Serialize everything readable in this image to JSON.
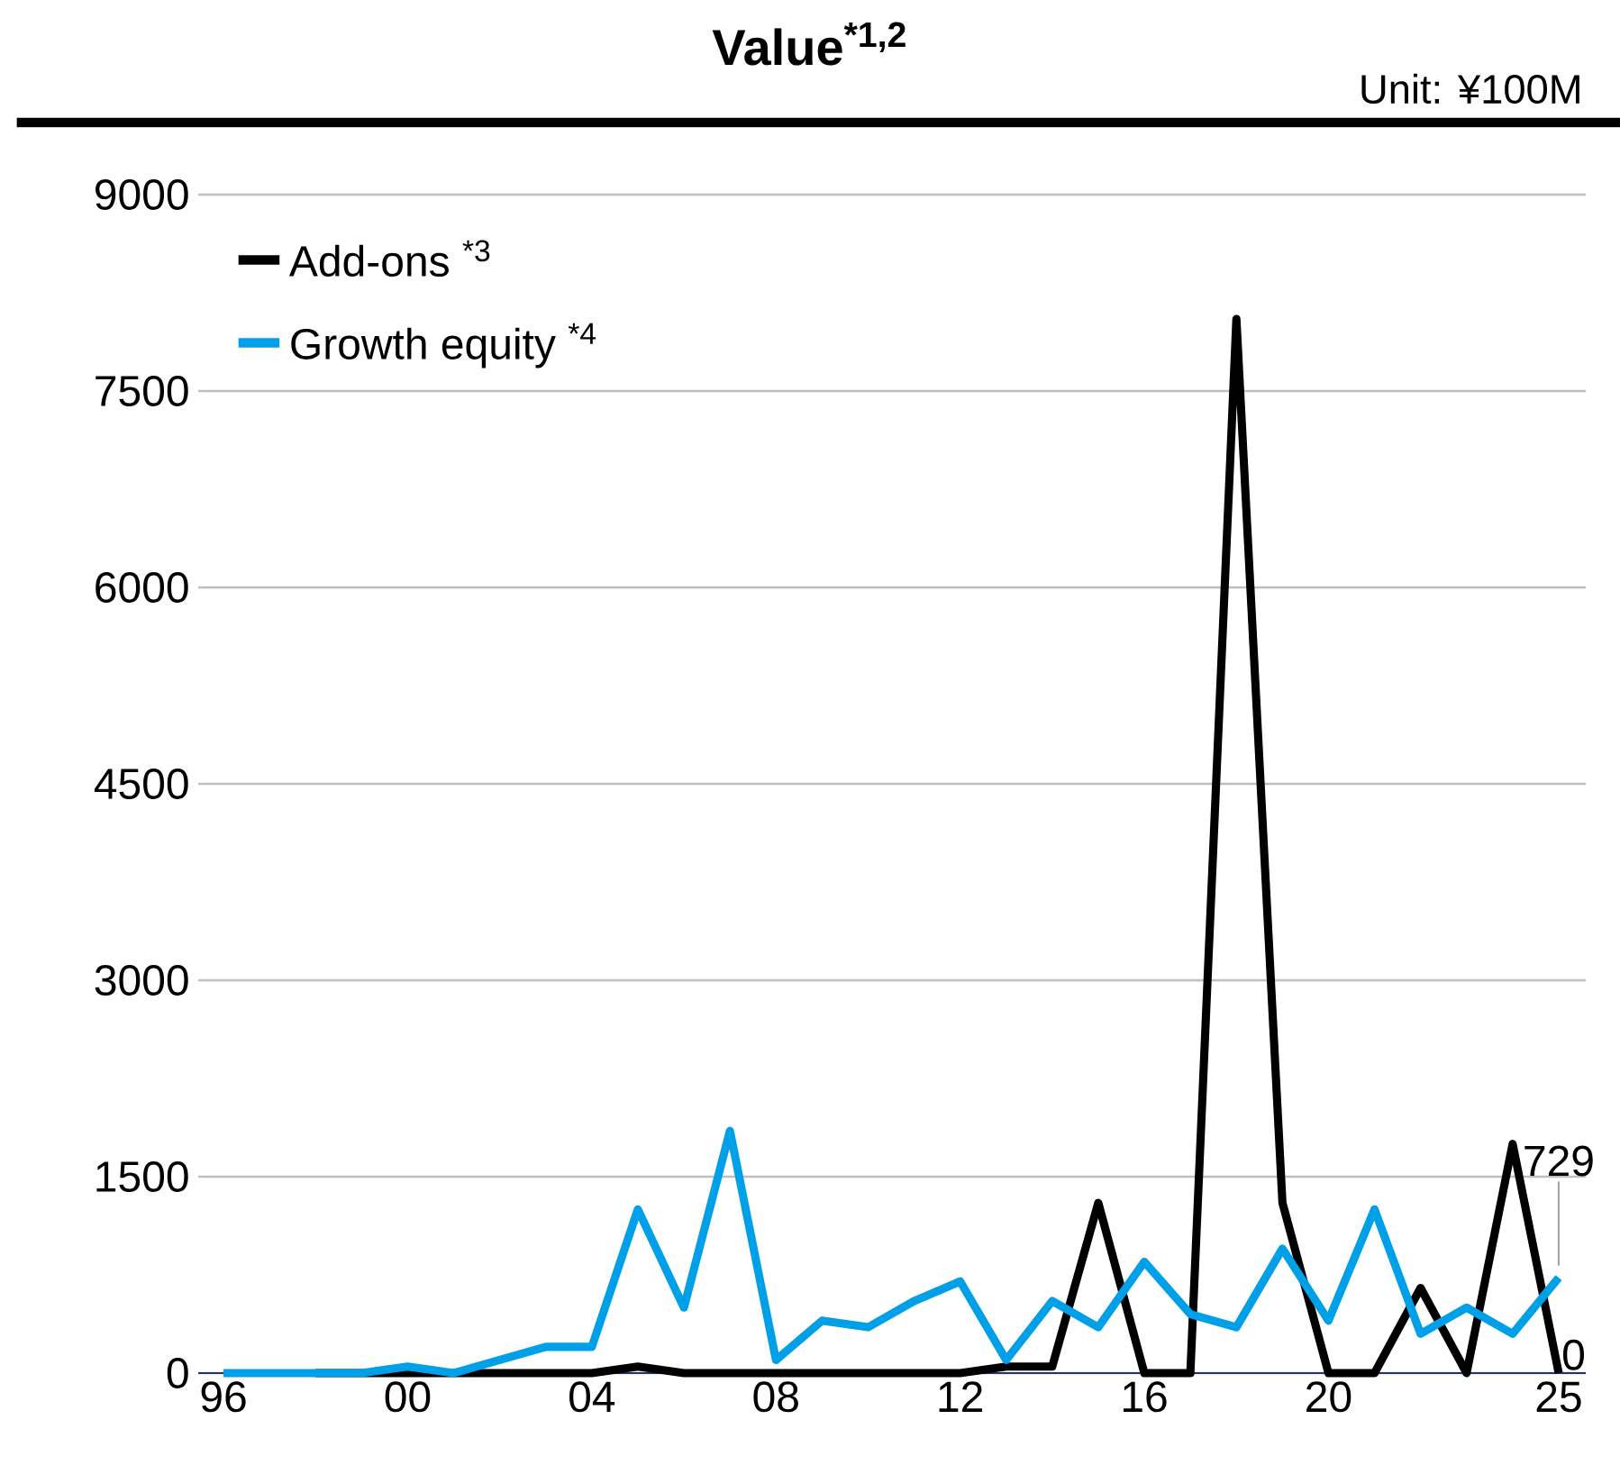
{
  "chart_data": {
    "type": "line",
    "title": "Value$^{*1,2}$",
    "subtitle": "Unit: ¥100M",
    "categories": [
      "96",
      null,
      null,
      null,
      "00",
      null,
      null,
      null,
      "04",
      null,
      null,
      null,
      "08",
      null,
      null,
      null,
      "12",
      null,
      null,
      null,
      "16",
      null,
      null,
      null,
      "20",
      null,
      null,
      null,
      null,
      "25"
    ],
    "series": [
      {
        "name": "Add-ons $^{*3}$",
        "color": "#000000",
        "values": [
          null,
          null,
          0,
          0,
          0,
          0,
          0,
          0,
          0,
          50,
          0,
          0,
          0,
          0,
          0,
          0,
          0,
          50,
          50,
          1300,
          0,
          0,
          8050,
          1300,
          0,
          0,
          650,
          0,
          1750,
          0
        ],
        "value_labels": [
          null,
          null,
          null,
          null,
          null,
          null,
          null,
          null,
          null,
          null,
          null,
          null,
          null,
          null,
          null,
          null,
          null,
          null,
          null,
          null,
          null,
          null,
          null,
          null,
          null,
          null,
          null,
          null,
          null,
          "0"
        ]
      },
      {
        "name": "Growth equity $^{*4}$",
        "color": "#00a0e9",
        "values": [
          0,
          0,
          0,
          0,
          50,
          0,
          100,
          200,
          200,
          1250,
          500,
          1850,
          100,
          400,
          350,
          550,
          700,
          100,
          550,
          350,
          850,
          450,
          350,
          950,
          400,
          1250,
          300,
          500,
          300,
          729
        ],
        "value_labels": [
          null,
          null,
          null,
          null,
          null,
          null,
          null,
          null,
          null,
          null,
          null,
          null,
          null,
          null,
          null,
          null,
          null,
          null,
          null,
          null,
          null,
          null,
          null,
          null,
          null,
          null,
          null,
          null,
          null,
          "729"
        ]
      }
    ],
    "ylim": [
      0,
      9000
    ],
    "yticks": [
      0,
      1500,
      3000,
      4500,
      6000,
      7500,
      9000
    ],
    "grid": "y",
    "legend": "top left",
    "marker": "none",
    "line_style": "solid"
  }
}
